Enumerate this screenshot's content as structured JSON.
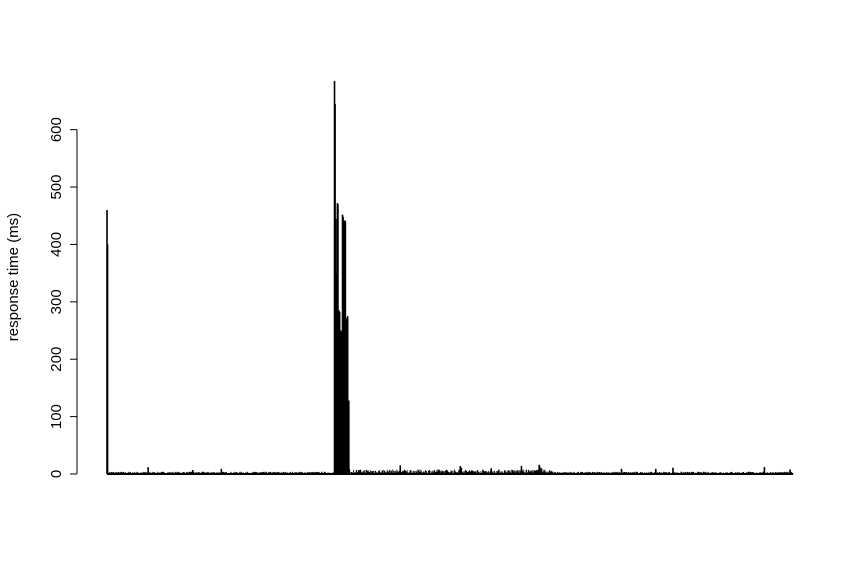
{
  "chart_data": {
    "type": "bar",
    "title": "",
    "xlabel": "",
    "ylabel": "response time (ms)",
    "ylim": [
      0,
      690
    ],
    "yticks": [
      0,
      100,
      200,
      300,
      400,
      500,
      600
    ],
    "ytick_labels": [
      "0",
      "100",
      "200",
      "300",
      "400",
      "500",
      "600"
    ],
    "xlim": [
      0,
      1200
    ],
    "grid": false,
    "legend": "none",
    "bar_color": "#000000",
    "baseline_level": 1,
    "noise_peak": 4,
    "spikes": [
      {
        "x": 0,
        "value": 460
      },
      {
        "x": 1,
        "value": 400
      },
      {
        "x": 72,
        "value": 12
      },
      {
        "x": 150,
        "value": 7
      },
      {
        "x": 200,
        "value": 9
      },
      {
        "x": 398,
        "value": 685
      },
      {
        "x": 399,
        "value": 645
      },
      {
        "x": 400,
        "value": 445
      },
      {
        "x": 401,
        "value": 350
      },
      {
        "x": 403,
        "value": 472
      },
      {
        "x": 404,
        "value": 470
      },
      {
        "x": 406,
        "value": 285
      },
      {
        "x": 407,
        "value": 282
      },
      {
        "x": 409,
        "value": 250
      },
      {
        "x": 410,
        "value": 248
      },
      {
        "x": 412,
        "value": 452
      },
      {
        "x": 413,
        "value": 448
      },
      {
        "x": 414,
        "value": 440
      },
      {
        "x": 416,
        "value": 442
      },
      {
        "x": 417,
        "value": 440
      },
      {
        "x": 419,
        "value": 270
      },
      {
        "x": 420,
        "value": 272
      },
      {
        "x": 421,
        "value": 275
      },
      {
        "x": 423,
        "value": 128
      },
      {
        "x": 424,
        "value": 8
      },
      {
        "x": 513,
        "value": 15
      },
      {
        "x": 618,
        "value": 14
      },
      {
        "x": 620,
        "value": 11
      },
      {
        "x": 672,
        "value": 10
      },
      {
        "x": 725,
        "value": 14
      },
      {
        "x": 756,
        "value": 16
      },
      {
        "x": 757,
        "value": 13
      },
      {
        "x": 760,
        "value": 10
      },
      {
        "x": 900,
        "value": 9
      },
      {
        "x": 960,
        "value": 9
      },
      {
        "x": 990,
        "value": 11
      },
      {
        "x": 1150,
        "value": 12
      },
      {
        "x": 1195,
        "value": 8
      }
    ],
    "moderate_region": {
      "from": 430,
      "to": 780,
      "peak": 8
    }
  }
}
